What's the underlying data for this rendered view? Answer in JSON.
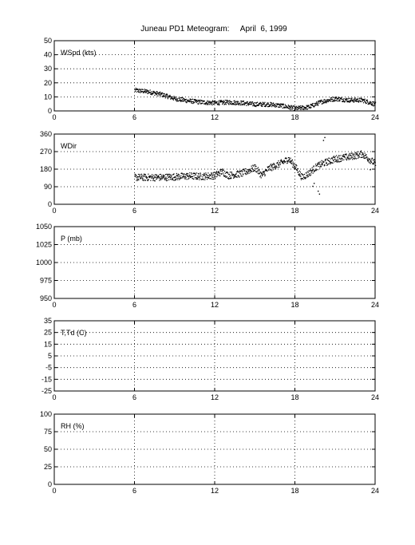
{
  "title": "Juneau PD1 Meteogram:     April  6, 1999",
  "chart_data": [
    {
      "type": "scatter",
      "label": "WSpd (kts)",
      "xlim": [
        0,
        24
      ],
      "ylim": [
        0,
        50
      ],
      "xticks": [
        "0",
        "6",
        "12",
        "18",
        "24"
      ],
      "yticks": [
        "0",
        "10",
        "20",
        "30",
        "40",
        "50"
      ],
      "grid": true,
      "trend": [
        [
          6,
          15
        ],
        [
          7,
          14
        ],
        [
          8,
          12
        ],
        [
          9,
          9
        ],
        [
          10,
          7.5
        ],
        [
          11,
          6.5
        ],
        [
          12,
          6
        ],
        [
          13,
          6.5
        ],
        [
          14,
          6
        ],
        [
          15,
          5
        ],
        [
          16,
          5
        ],
        [
          17,
          4
        ],
        [
          18,
          2
        ],
        [
          19,
          3
        ],
        [
          20,
          7
        ],
        [
          21,
          9
        ],
        [
          22,
          8
        ],
        [
          23,
          8
        ],
        [
          24,
          5
        ]
      ],
      "outliers": [],
      "spread": 1.6
    },
    {
      "type": "scatter",
      "label": "WDir",
      "xlim": [
        0,
        24
      ],
      "ylim": [
        0,
        360
      ],
      "xticks": [
        "0",
        "6",
        "12",
        "18",
        "24"
      ],
      "yticks": [
        "0",
        "90",
        "180",
        "270",
        "360"
      ],
      "grid": true,
      "trend": [
        [
          6,
          140
        ],
        [
          7,
          140
        ],
        [
          8,
          140
        ],
        [
          9,
          143
        ],
        [
          10,
          147
        ],
        [
          11,
          145
        ],
        [
          12,
          150
        ],
        [
          12.5,
          170
        ],
        [
          13,
          150
        ],
        [
          14,
          160
        ],
        [
          15,
          190
        ],
        [
          15.5,
          150
        ],
        [
          16,
          185
        ],
        [
          17,
          215
        ],
        [
          17.5,
          235
        ],
        [
          18,
          195
        ],
        [
          18.5,
          140
        ],
        [
          19,
          160
        ],
        [
          19.5,
          190
        ],
        [
          20,
          210
        ],
        [
          21,
          235
        ],
        [
          22,
          245
        ],
        [
          23,
          260
        ],
        [
          24,
          210
        ]
      ],
      "outliers": [
        [
          19.3,
          95
        ],
        [
          19.4,
          110
        ],
        [
          19.7,
          70
        ],
        [
          19.8,
          55
        ],
        [
          20.1,
          330
        ],
        [
          20.2,
          345
        ],
        [
          23.6,
          180
        ]
      ],
      "spread": 18
    },
    {
      "type": "scatter",
      "label": "P (mb)",
      "xlim": [
        0,
        24
      ],
      "ylim": [
        950,
        1050
      ],
      "xticks": [
        "0",
        "6",
        "12",
        "18",
        "24"
      ],
      "yticks": [
        "950",
        "975",
        "1000",
        "1025",
        "1050"
      ],
      "grid": true
    },
    {
      "type": "scatter",
      "label": "T,Td (C)",
      "xlim": [
        0,
        24
      ],
      "ylim": [
        -25,
        35
      ],
      "xticks": [
        "0",
        "6",
        "12",
        "18",
        "24"
      ],
      "yticks": [
        "-25",
        "-15",
        "-5",
        "5",
        "15",
        "25",
        "35"
      ],
      "grid": true
    },
    {
      "type": "scatter",
      "label": "RH (%)",
      "xlim": [
        0,
        24
      ],
      "ylim": [
        0,
        100
      ],
      "xticks": [
        "0",
        "6",
        "12",
        "18",
        "24"
      ],
      "yticks": [
        "0",
        "25",
        "50",
        "75",
        "100"
      ],
      "grid": true
    }
  ]
}
